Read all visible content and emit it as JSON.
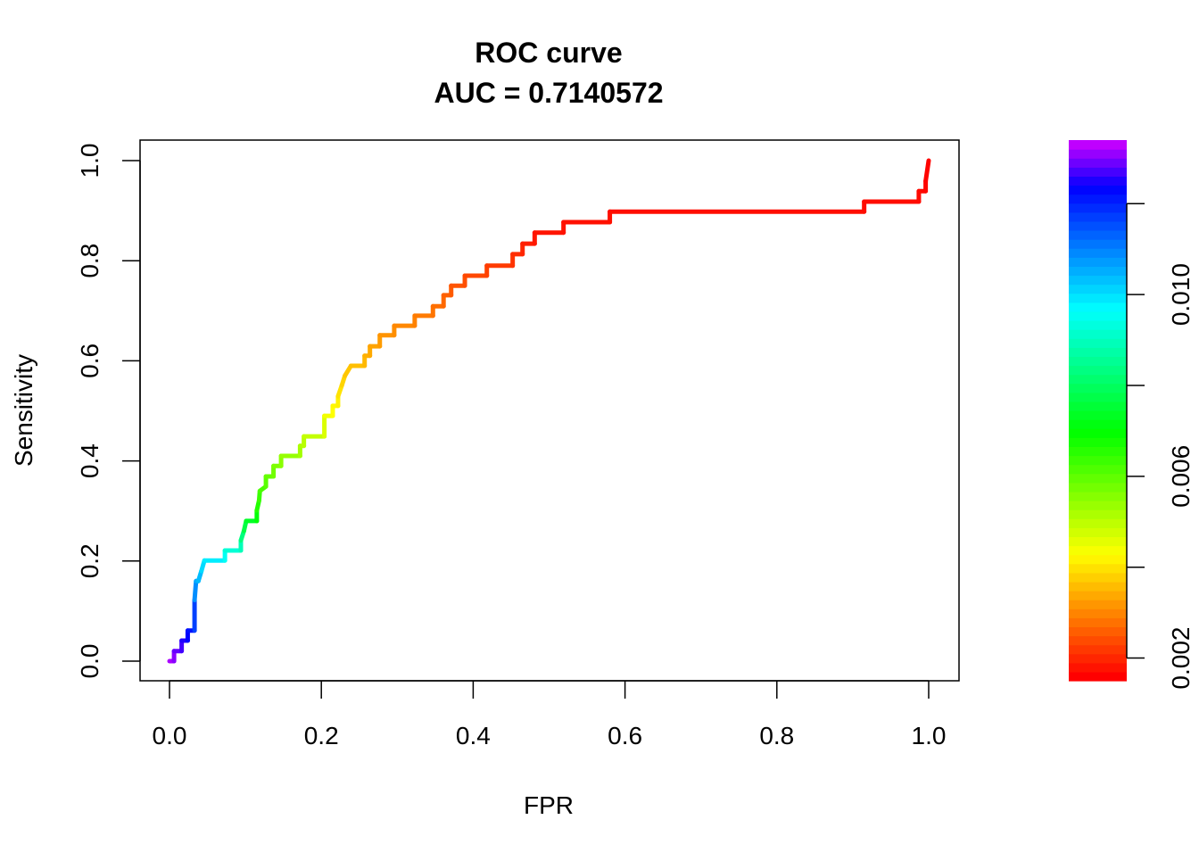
{
  "chart_data": {
    "type": "line",
    "title": "ROC curve",
    "subtitle": "AUC = 0.7140572",
    "xlabel": "FPR",
    "ylabel": "Sensitivity",
    "xlim": [
      0,
      1
    ],
    "ylim": [
      0,
      1
    ],
    "x_ticks": [
      "0.0",
      "0.2",
      "0.4",
      "0.6",
      "0.8",
      "1.0"
    ],
    "y_ticks": [
      "0.0",
      "0.2",
      "0.4",
      "0.6",
      "0.8",
      "1.0"
    ],
    "grid": false,
    "legend": "none",
    "series": [
      {
        "step": true,
        "fpr": [
          0,
          0.006,
          0.006,
          0.016,
          0.016,
          0.024,
          0.024,
          0.033,
          0.033,
          0.035,
          0.038,
          0.042,
          0.046,
          0.073,
          0.073,
          0.094,
          0.094,
          0.098,
          0.101,
          0.115,
          0.115,
          0.118,
          0.119,
          0.127,
          0.127,
          0.137,
          0.137,
          0.147,
          0.147,
          0.172,
          0.172,
          0.177,
          0.177,
          0.204,
          0.204,
          0.215,
          0.215,
          0.222,
          0.222,
          0.227,
          0.231,
          0.239,
          0.257,
          0.257,
          0.264,
          0.264,
          0.277,
          0.277,
          0.296,
          0.296,
          0.323,
          0.323,
          0.347,
          0.347,
          0.361,
          0.361,
          0.371,
          0.371,
          0.389,
          0.389,
          0.418,
          0.418,
          0.452,
          0.452,
          0.465,
          0.465,
          0.481,
          0.481,
          0.519,
          0.519,
          0.58,
          0.58,
          0.915,
          0.915,
          0.987,
          0.987,
          0.996,
          0.996,
          1.0
        ],
        "tpr": [
          0,
          0,
          0.02,
          0.02,
          0.041,
          0.041,
          0.061,
          0.061,
          0.122,
          0.16,
          0.16,
          0.18,
          0.201,
          0.201,
          0.221,
          0.221,
          0.241,
          0.26,
          0.28,
          0.28,
          0.301,
          0.321,
          0.34,
          0.349,
          0.369,
          0.369,
          0.39,
          0.39,
          0.41,
          0.41,
          0.43,
          0.43,
          0.449,
          0.449,
          0.49,
          0.49,
          0.51,
          0.51,
          0.529,
          0.551,
          0.57,
          0.59,
          0.59,
          0.61,
          0.61,
          0.629,
          0.629,
          0.651,
          0.651,
          0.67,
          0.67,
          0.69,
          0.69,
          0.709,
          0.709,
          0.731,
          0.731,
          0.75,
          0.75,
          0.77,
          0.77,
          0.79,
          0.79,
          0.813,
          0.813,
          0.834,
          0.834,
          0.856,
          0.856,
          0.877,
          0.877,
          0.898,
          0.898,
          0.918,
          0.918,
          0.939,
          0.939,
          0.959,
          1.0
        ]
      }
    ],
    "colorbar": {
      "range": [
        0.0015,
        0.0134
      ],
      "ticks": [
        0.002,
        0.004,
        0.006,
        0.008,
        0.01,
        0.012
      ],
      "tick_labels": [
        "0.002",
        "",
        "0.006",
        "",
        "0.010",
        ""
      ],
      "palette": [
        "#ff0000",
        "#ff8000",
        "#ffff00",
        "#80ff00",
        "#00ff00",
        "#00ffff",
        "#0080ff",
        "#0000ff",
        "#8000ff",
        "#c000ff"
      ]
    }
  }
}
